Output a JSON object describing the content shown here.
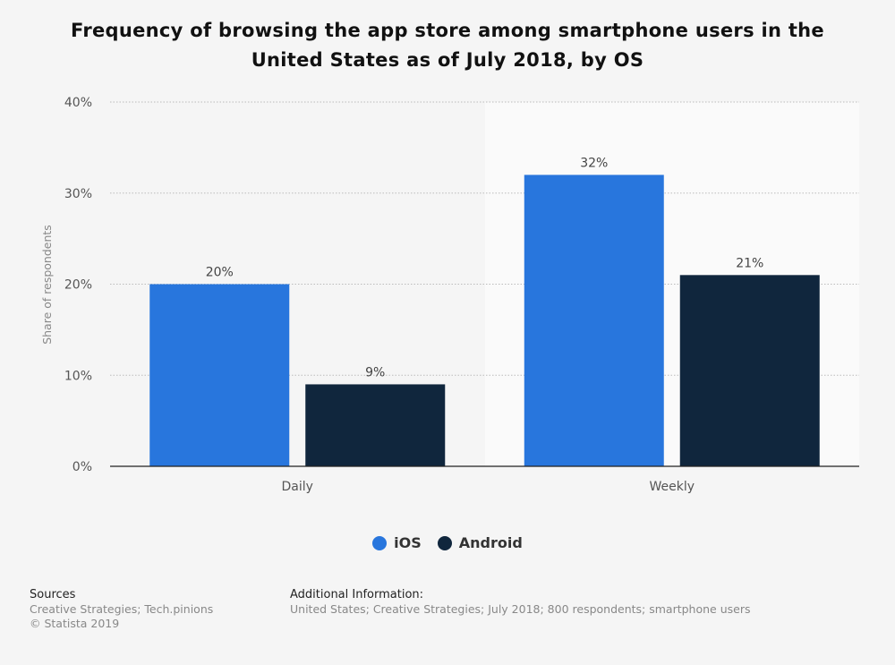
{
  "chart_data": {
    "type": "bar",
    "title": "Frequency of browsing the app store among smartphone users in the United States as of July 2018, by OS",
    "categories": [
      "Daily",
      "Weekly"
    ],
    "series": [
      {
        "name": "iOS",
        "color": "#2876dd",
        "values": [
          20,
          32
        ]
      },
      {
        "name": "Android",
        "color": "#10263d",
        "values": [
          9,
          21
        ]
      }
    ],
    "ylabel": "Share of respondents",
    "ylim": [
      0,
      40
    ],
    "yticks": [
      0,
      10,
      20,
      30,
      40
    ],
    "ytick_labels": [
      "0%",
      "10%",
      "20%",
      "30%",
      "40%"
    ],
    "value_suffix": "%",
    "legend": "bottom-center"
  },
  "footer": {
    "sources_heading": "Sources",
    "sources_text": "Creative Strategies; Tech.pinions",
    "copyright": "© Statista 2019",
    "info_heading": "Additional Information:",
    "info_text": "United States; Creative Strategies; July 2018; 800 respondents; smartphone users"
  }
}
